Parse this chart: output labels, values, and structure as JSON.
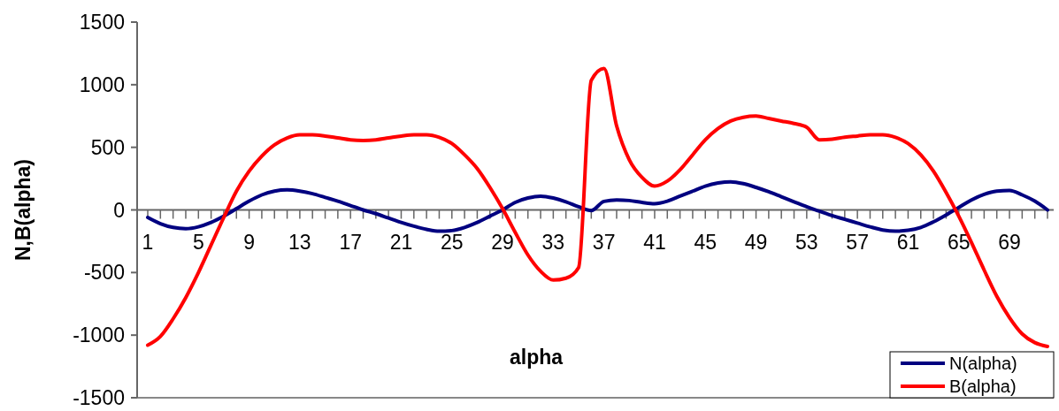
{
  "chart_data": {
    "type": "line",
    "xlabel": "alpha",
    "ylabel": "N,B(alpha)",
    "categories": [
      "1",
      null,
      null,
      null,
      "5",
      null,
      null,
      null,
      "9",
      null,
      null,
      null,
      "13",
      null,
      null,
      null,
      "17",
      null,
      null,
      null,
      "21",
      null,
      null,
      null,
      "25",
      null,
      null,
      null,
      "29",
      null,
      null,
      null,
      "33",
      null,
      null,
      null,
      "37",
      null,
      null,
      null,
      "41",
      null,
      null,
      null,
      "45",
      null,
      null,
      null,
      "49",
      null,
      null,
      null,
      "53",
      null,
      null,
      null,
      "57",
      null,
      null,
      null,
      "61",
      null,
      null,
      null,
      "65",
      null,
      null,
      null,
      "69",
      null,
      null,
      null
    ],
    "series": [
      {
        "name": "N(alpha)",
        "color": "#000080",
        "values": [
          -60,
          -110,
          -140,
          -150,
          -135,
          -100,
          -50,
          10,
          70,
          120,
          150,
          160,
          150,
          130,
          100,
          70,
          35,
          0,
          -30,
          -65,
          -100,
          -130,
          -155,
          -170,
          -165,
          -140,
          -100,
          -50,
          0,
          60,
          95,
          110,
          95,
          65,
          25,
          -5,
          68,
          80,
          75,
          60,
          50,
          70,
          110,
          150,
          190,
          215,
          225,
          210,
          180,
          145,
          105,
          65,
          25,
          -10,
          -45,
          -75,
          -105,
          -135,
          -160,
          -170,
          -163,
          -140,
          -95,
          -40,
          20,
          80,
          125,
          150,
          155,
          120,
          70,
          0
        ]
      },
      {
        "name": "B(alpha)",
        "color": "#ff0000",
        "values": [
          -1080,
          -1010,
          -870,
          -700,
          -500,
          -280,
          -60,
          150,
          310,
          430,
          520,
          575,
          600,
          600,
          590,
          575,
          560,
          555,
          560,
          575,
          590,
          600,
          600,
          580,
          530,
          440,
          330,
          180,
          10,
          -180,
          -360,
          -490,
          -560,
          -545,
          -460,
          1035,
          1130,
          670,
          400,
          260,
          190,
          230,
          320,
          440,
          560,
          650,
          710,
          740,
          750,
          730,
          710,
          690,
          660,
          560,
          565,
          580,
          590,
          600,
          600,
          580,
          530,
          440,
          310,
          140,
          -50,
          -260,
          -480,
          -690,
          -860,
          -990,
          -1060,
          -1090
        ]
      }
    ],
    "ylim": [
      -1500,
      1500
    ],
    "yticks": [
      -1500,
      -1000,
      -500,
      0,
      500,
      1000,
      1500
    ],
    "grid": false,
    "legend": "bottom right",
    "marker": "none",
    "line_style": "solid"
  }
}
